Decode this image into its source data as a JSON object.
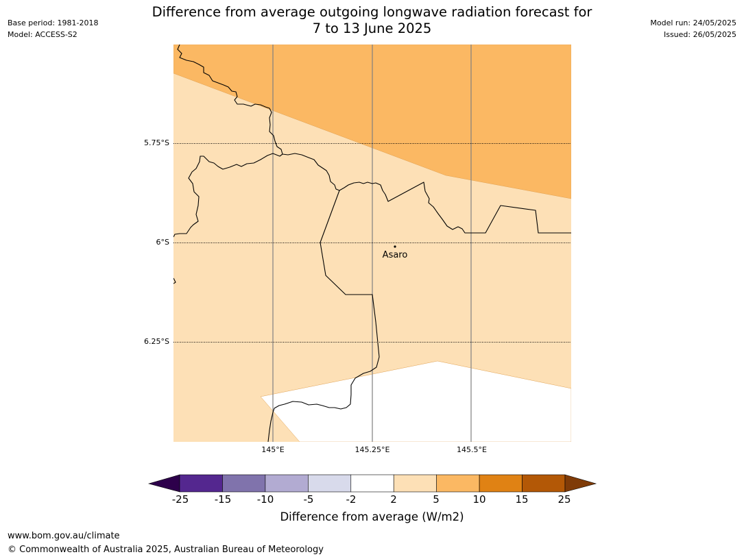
{
  "header": {
    "title_line1": "Difference from average outgoing longwave radiation forecast for",
    "title_line2": "7 to 13 June 2025",
    "base_period": "Base period: 1981-2018",
    "model": "Model: ACCESS-S2",
    "model_run": "Model run: 24/05/2025",
    "issued": "Issued: 26/05/2025"
  },
  "map": {
    "lat_labels": [
      "5.75°S",
      "6°S",
      "6.25°S"
    ],
    "lon_labels": [
      "145°E",
      "145.25°E",
      "145.5°E"
    ],
    "place": {
      "name": "Asaro"
    },
    "colors": {
      "band_2_5": "#fde0b6",
      "band_5_10": "#fbb863",
      "band_neg2_2": "#ffffff",
      "border": "#000000",
      "grid": "#000000",
      "meridian": "#808080"
    }
  },
  "colorbar": {
    "ticks": [
      "-25",
      "-15",
      "-10",
      "-5",
      "-2",
      "2",
      "5",
      "10",
      "15",
      "25"
    ],
    "colors": [
      "#54278f",
      "#8073ac",
      "#b2abd2",
      "#d8daeb",
      "#ffffff",
      "#fde0b6",
      "#fbb863",
      "#e08214",
      "#b35806"
    ],
    "under_color": "#2d004b",
    "over_color": "#7f3b08",
    "label": "Difference from average (W/m2)"
  },
  "footer": {
    "url": "www.bom.gov.au/climate",
    "copyright": "© Commonwealth of Australia 2025, Australian Bureau of Meteorology"
  }
}
